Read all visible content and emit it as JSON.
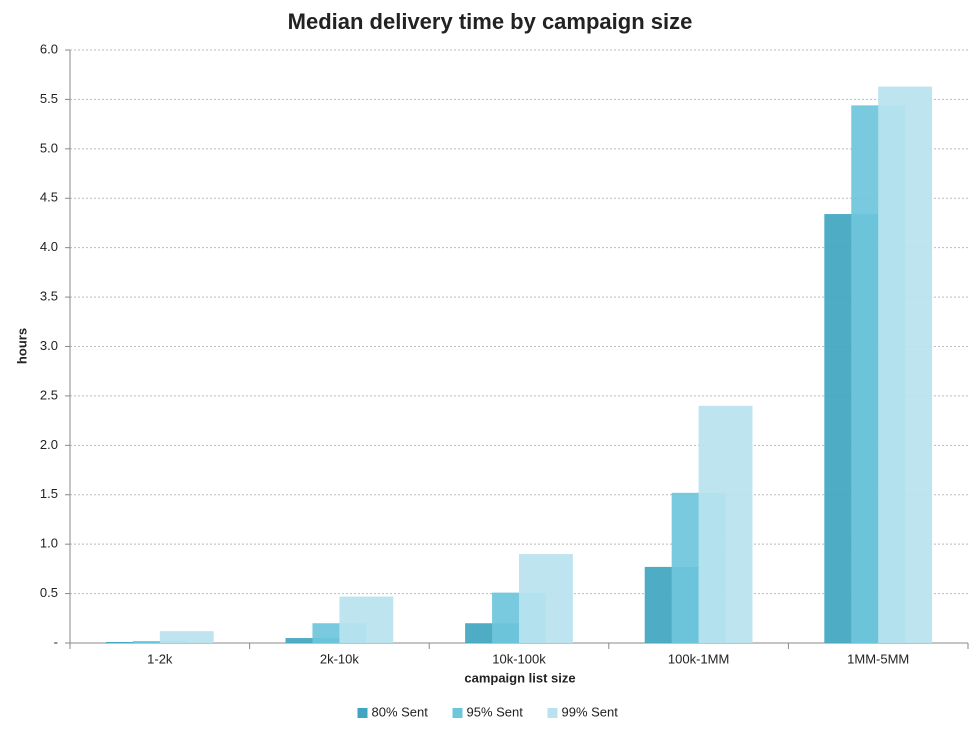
{
  "chart_data": {
    "type": "bar",
    "title": "Median delivery time by campaign size",
    "x_label": "campaign list size",
    "y_label": "hours",
    "categories": [
      "1-2k",
      "2k-10k",
      "10k-100k",
      "100k-1MM",
      "1MM-5MM"
    ],
    "series": [
      {
        "name": "80% Sent",
        "color": "#3fa5c0",
        "values": [
          0.01,
          0.05,
          0.2,
          0.77,
          4.34
        ]
      },
      {
        "name": "95% Sent",
        "color": "#6ec6db",
        "values": [
          0.02,
          0.2,
          0.51,
          1.52,
          5.44
        ]
      },
      {
        "name": "99% Sent",
        "color": "#b8e3ee",
        "values": [
          0.12,
          0.47,
          0.9,
          2.4,
          5.63
        ]
      }
    ],
    "ylim": [
      0,
      6
    ],
    "yticks": [
      {
        "value": 0,
        "label": "-"
      },
      0.5,
      {
        "value": 1,
        "label": "1.0"
      },
      1.5,
      {
        "value": 2,
        "label": "2.0"
      },
      2.5,
      {
        "value": 3,
        "label": "3.0"
      },
      3.5,
      {
        "value": 4,
        "label": "4.0"
      },
      4.5,
      {
        "value": 5,
        "label": "5.0"
      },
      5.5,
      {
        "value": 6,
        "label": "6.0"
      }
    ],
    "grid": true,
    "legend": "bottom"
  }
}
